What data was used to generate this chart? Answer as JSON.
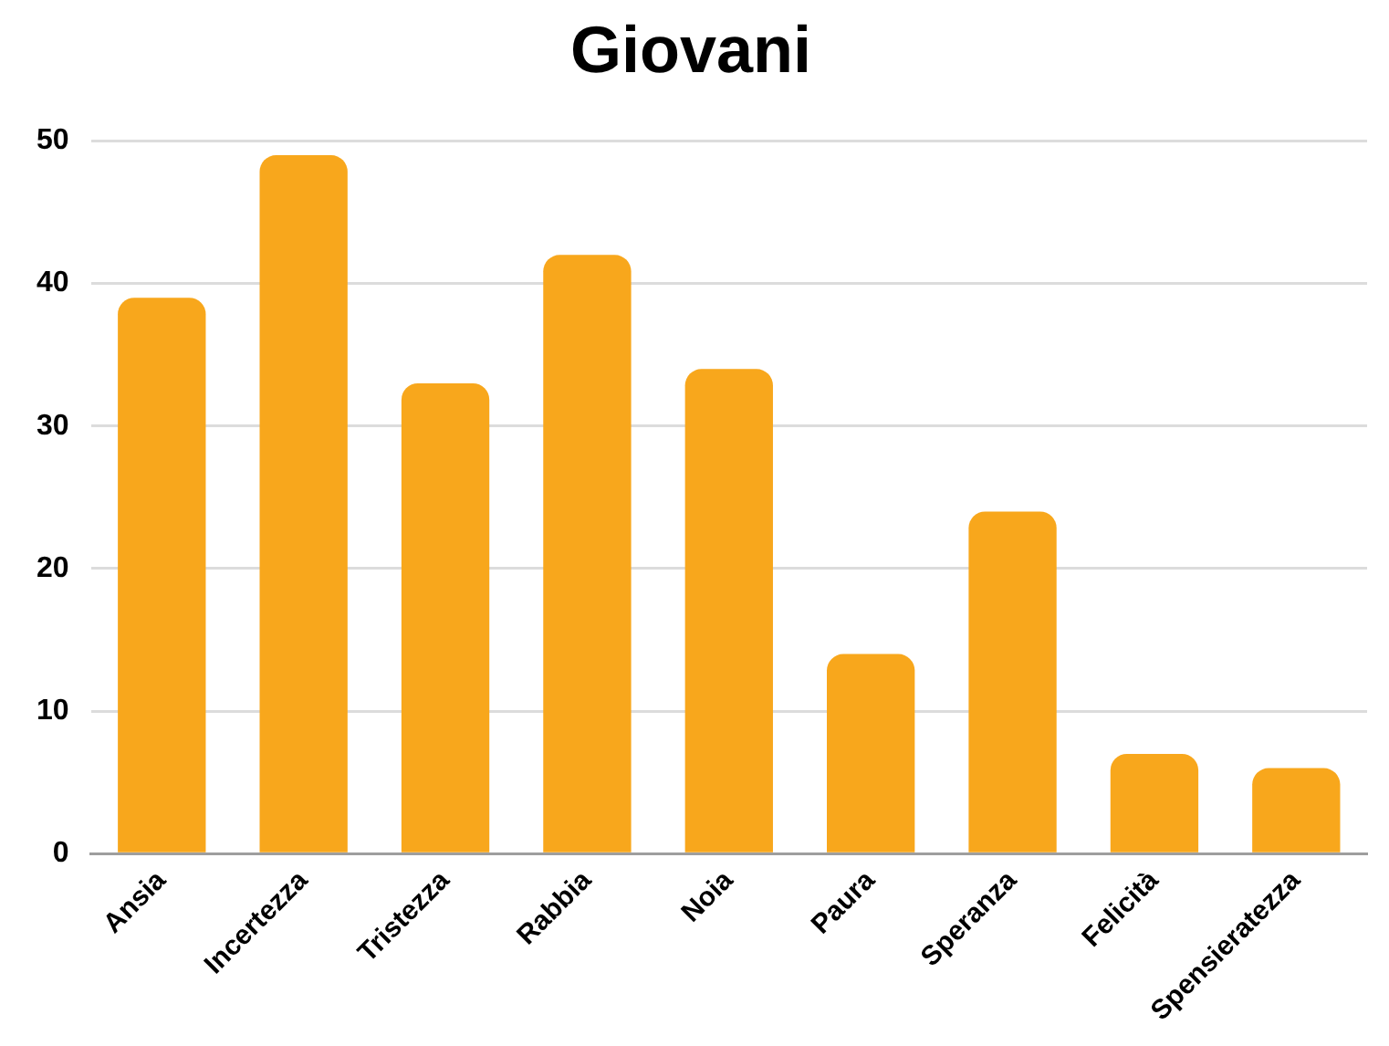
{
  "chart_data": {
    "type": "bar",
    "title": "Giovani",
    "categories": [
      "Ansia",
      "Incertezza",
      "Tristezza",
      "Rabbia",
      "Noia",
      "Paura",
      "Speranza",
      "Felicità",
      "Spensieratezza"
    ],
    "values": [
      39,
      49,
      33,
      42,
      34,
      14,
      24,
      7,
      6
    ],
    "color": "#f8a71c",
    "ylim": [
      0,
      50
    ],
    "yticks": [
      0,
      10,
      20,
      30,
      40,
      50
    ],
    "grid": "y"
  }
}
